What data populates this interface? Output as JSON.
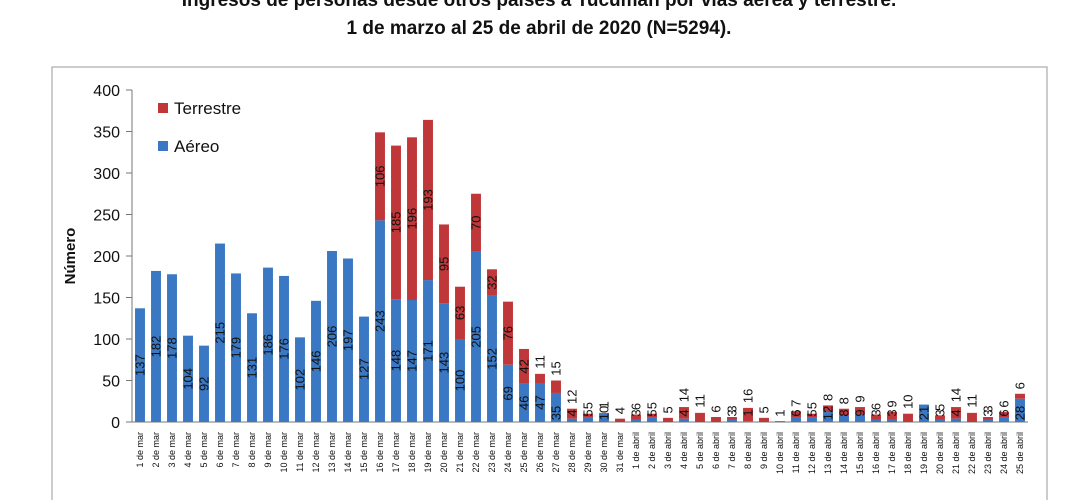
{
  "title_line1": "Ingresos de personas desde otros países a Tucumán por vías aérea y terrestre.",
  "title_line2": "1 de marzo al 25 de abril de 2020 (N=5294).",
  "chart_data": {
    "type": "bar",
    "stacked": true,
    "ylabel": "Número",
    "ylim": [
      0,
      400
    ],
    "yticks": [
      0,
      50,
      100,
      150,
      200,
      250,
      300,
      350,
      400
    ],
    "legend_position": "top-left",
    "categories": [
      "1 de mar",
      "2 de mar",
      "3 de mar",
      "4 de mar",
      "5 de mar",
      "6 de mar",
      "7 de mar",
      "8 de mar",
      "9 de mar",
      "10 de mar",
      "11 de mar",
      "12 de mar",
      "13 de mar",
      "14 de mar",
      "15 de mar",
      "16 de mar",
      "17 de mar",
      "18 de mar",
      "19 de mar",
      "20 de mar",
      "21 de mar",
      "22 de mar",
      "23 de mar",
      "24 de mar",
      "25 de mar",
      "26 de mar",
      "27 de mar",
      "28 de mar",
      "29 de mar",
      "30 de mar",
      "31 de mar",
      "1 de abril",
      "2 de abril",
      "3 de abril",
      "4 de abril",
      "5 de abril",
      "6 de abril",
      "7 de abril",
      "8 de abril",
      "9 de abril",
      "10 de abril",
      "11 de abril",
      "12 de abril",
      "13 de abril",
      "14 de abril",
      "15 de abril",
      "16 de abril",
      "17 de abril",
      "18 de abril",
      "19 de abril",
      "20 de abril",
      "21 de abril",
      "22 de abril",
      "23 de abril",
      "24 de abril",
      "25 de abril"
    ],
    "series": [
      {
        "name": "Aéreo",
        "color": "#3a78c3",
        "values": [
          137,
          182,
          178,
          104,
          92,
          215,
          179,
          131,
          186,
          176,
          102,
          146,
          206,
          197,
          127,
          243,
          148,
          147,
          171,
          143,
          100,
          205,
          152,
          69,
          46,
          47,
          35,
          4,
          5,
          10,
          0,
          3,
          5,
          0,
          4,
          0,
          0,
          3,
          1,
          0,
          0,
          6,
          5,
          12,
          8,
          9,
          3,
          3,
          0,
          21,
          3,
          4,
          0,
          3,
          6,
          28
        ],
        "labels": [
          "137",
          "182",
          "178",
          "104",
          "92",
          "215",
          "179",
          "131",
          "186",
          "176",
          "102",
          "146",
          "206",
          "197",
          "127",
          "243",
          "148",
          "147",
          "171",
          "143",
          "100",
          "205",
          "152",
          "69",
          "46",
          "47",
          "35",
          "4",
          "5",
          "10",
          "",
          "3",
          "5",
          "",
          "4",
          "",
          "",
          "3",
          "1",
          "",
          "",
          "6",
          "5",
          "12",
          "8",
          "9",
          "3",
          "3",
          "",
          "21",
          "3",
          "4",
          "",
          "3",
          "6",
          "28"
        ]
      },
      {
        "name": "Terrestre",
        "color": "#c0373a",
        "values": [
          0,
          0,
          0,
          0,
          0,
          0,
          0,
          0,
          0,
          0,
          0,
          0,
          0,
          0,
          0,
          106,
          185,
          196,
          193,
          95,
          63,
          70,
          32,
          76,
          42,
          11,
          15,
          12,
          5,
          1,
          4,
          6,
          5,
          5,
          14,
          11,
          6,
          3,
          16,
          5,
          1,
          7,
          5,
          8,
          8,
          9,
          6,
          9,
          10,
          0,
          5,
          14,
          11,
          3,
          6,
          6
        ],
        "labels": [
          "",
          "",
          "",
          "",
          "",
          "",
          "",
          "",
          "",
          "",
          "",
          "",
          "",
          "",
          "",
          "106",
          "185",
          "196",
          "193",
          "95",
          "63",
          "70",
          "32",
          "76",
          "42",
          "11",
          "15",
          "12",
          "5",
          "1",
          "4",
          "6",
          "5",
          "5",
          "14",
          "11",
          "6",
          "3",
          "16",
          "5",
          "1",
          "7",
          "5",
          "8",
          "8",
          "9",
          "6",
          "9",
          "10",
          "",
          "5",
          "14",
          "11",
          "3",
          "6",
          "6"
        ]
      }
    ]
  }
}
